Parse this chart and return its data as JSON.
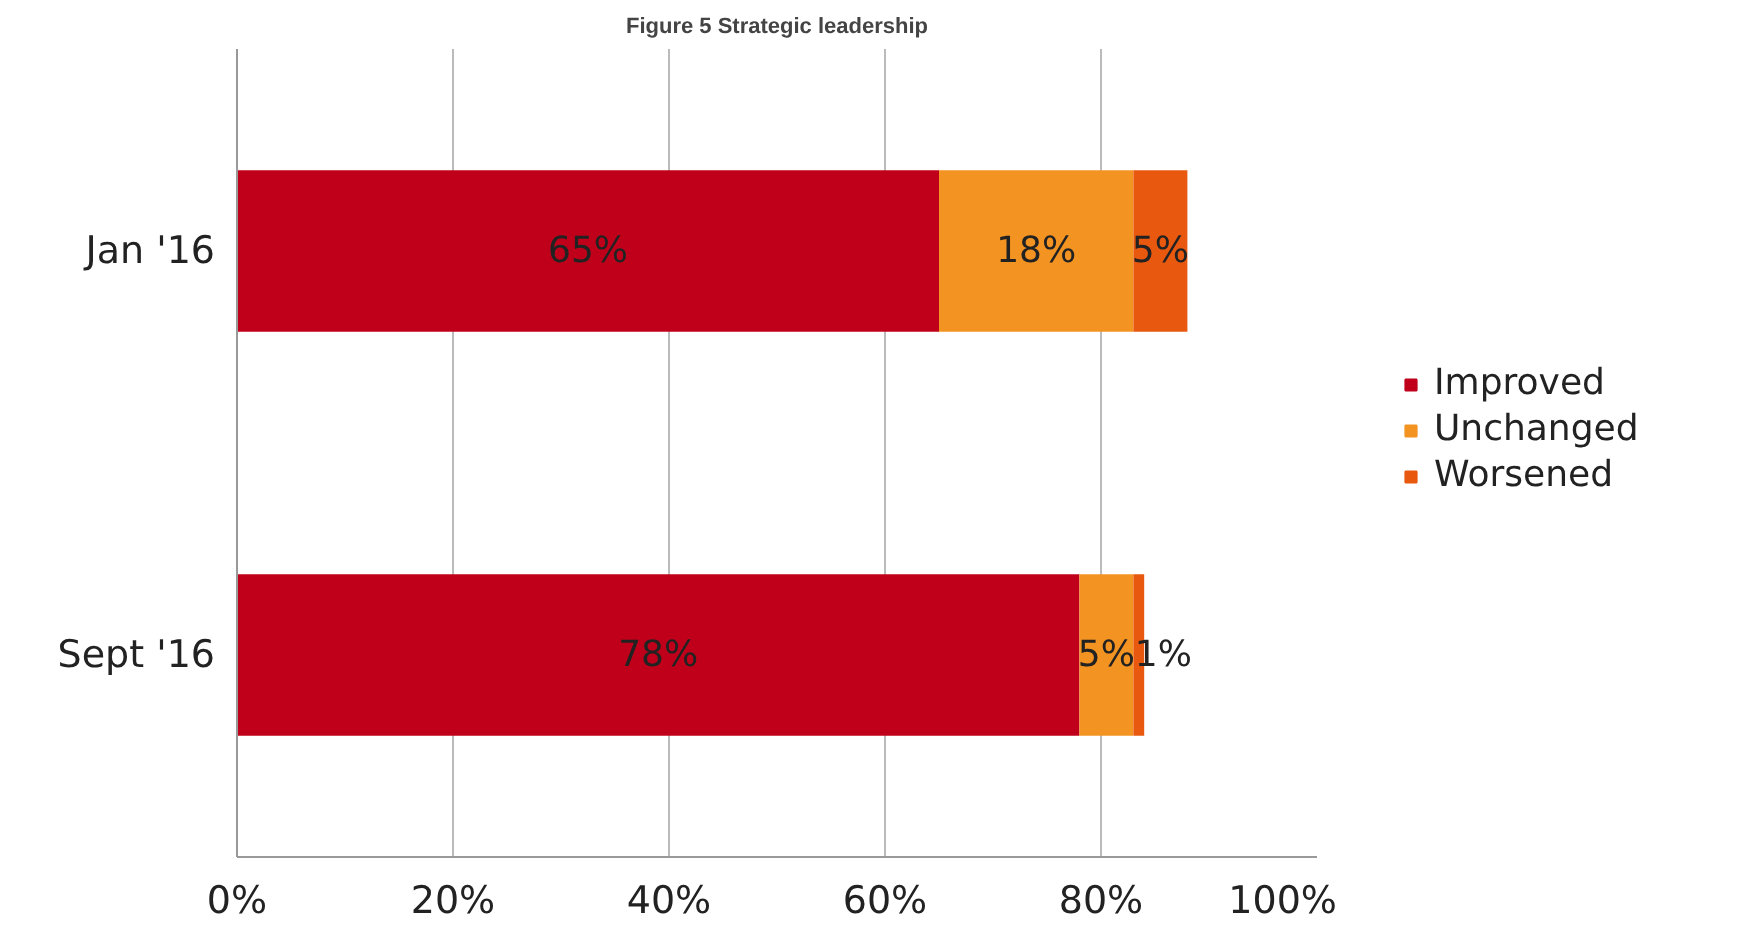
{
  "chart_data": {
    "type": "bar",
    "title": "Figure 5 Strategic leadership",
    "orientation": "horizontal",
    "stacked": true,
    "categories": [
      "Jan '16",
      "Sept '16"
    ],
    "series": [
      {
        "name": "Improved",
        "color": "#c0001a",
        "values": [
          65,
          78
        ],
        "value_labels": [
          "65%",
          "78%"
        ]
      },
      {
        "name": "Unchanged",
        "color": "#f39321",
        "values": [
          18,
          5
        ],
        "value_labels": [
          "18%",
          "5%"
        ]
      },
      {
        "name": "Worsened",
        "color": "#e8590f",
        "values": [
          5,
          1
        ],
        "value_labels": [
          "5%",
          "1%"
        ]
      }
    ],
    "xlim": [
      0,
      100
    ],
    "xticks": [
      {
        "value": 0,
        "label": "0%"
      },
      {
        "value": 20,
        "label": "20%"
      },
      {
        "value": 40,
        "label": "40%"
      },
      {
        "value": 60,
        "label": "60%"
      },
      {
        "value": 80,
        "label": "80%"
      },
      {
        "value": 100,
        "label": "100%"
      }
    ],
    "grid": "x",
    "legend": "right"
  }
}
